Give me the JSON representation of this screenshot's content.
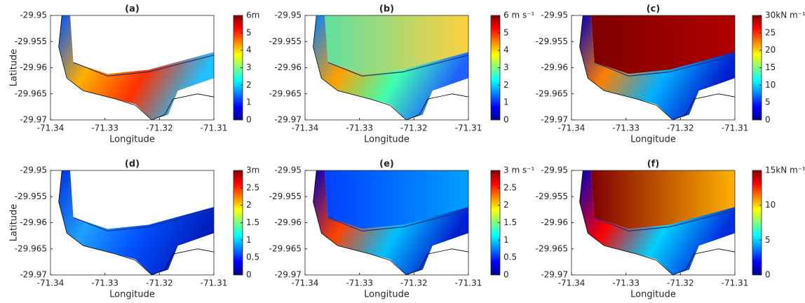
{
  "chart_data": [
    {
      "type": "map",
      "title": "(a)",
      "xlabel": "Longitude",
      "ylabel": "Latitude",
      "colormap": "jet",
      "xlim": [
        -71.34,
        -71.31
      ],
      "xticks": [
        -71.34,
        -71.33,
        -71.32,
        -71.31
      ],
      "ylim": [
        -29.97,
        -29.95
      ],
      "yticks": [
        -29.97,
        -29.965,
        -29.96,
        -29.955,
        -29.95
      ],
      "clim": [
        0,
        6
      ],
      "cticks": [
        0,
        1,
        2,
        3,
        4,
        5,
        {
          "value": 6,
          "label": "6m"
        }
      ]
    },
    {
      "type": "map",
      "title": "(b)",
      "xlabel": "Longitude",
      "colormap": "jet",
      "xlim": [
        -71.34,
        -71.31
      ],
      "xticks": [
        -71.34,
        -71.33,
        -71.32,
        -71.31
      ],
      "ylim": [
        -29.97,
        -29.95
      ],
      "yticks": [
        -29.97,
        -29.965,
        -29.96,
        -29.955,
        -29.95
      ],
      "clim": [
        0,
        6
      ],
      "cticks": [
        0,
        1,
        2,
        3,
        4,
        5,
        {
          "value": 6,
          "label": "6 m s⁻¹"
        }
      ]
    },
    {
      "type": "map",
      "title": "(c)",
      "xlabel": "Longitude",
      "colormap": "jet",
      "xlim": [
        -71.34,
        -71.31
      ],
      "xticks": [
        -71.34,
        -71.33,
        -71.32,
        -71.31
      ],
      "ylim": [
        -29.97,
        -29.95
      ],
      "yticks": [
        -29.97,
        -29.965,
        -29.96,
        -29.955,
        -29.95
      ],
      "clim": [
        0,
        30
      ],
      "cticks": [
        0,
        5,
        10,
        15,
        20,
        25,
        {
          "value": 30,
          "label": "30kN m⁻¹"
        }
      ]
    },
    {
      "type": "map",
      "title": "(d)",
      "xlabel": "Longitude",
      "ylabel": "Latitude",
      "colormap": "jet",
      "xlim": [
        -71.34,
        -71.31
      ],
      "xticks": [
        -71.34,
        -71.33,
        -71.32,
        -71.31
      ],
      "ylim": [
        -29.97,
        -29.95
      ],
      "yticks": [
        -29.97,
        -29.965,
        -29.96,
        -29.955,
        -29.95
      ],
      "clim": [
        0,
        3
      ],
      "cticks": [
        0,
        0.5,
        1,
        1.5,
        2,
        2.5,
        {
          "value": 3,
          "label": "3m"
        }
      ]
    },
    {
      "type": "map",
      "title": "(e)",
      "xlabel": "Longitude",
      "colormap": "jet",
      "xlim": [
        -71.34,
        -71.31
      ],
      "xticks": [
        -71.34,
        -71.33,
        -71.32,
        -71.31
      ],
      "ylim": [
        -29.97,
        -29.95
      ],
      "yticks": [
        -29.97,
        -29.965,
        -29.96,
        -29.955,
        -29.95
      ],
      "clim": [
        0,
        3
      ],
      "cticks": [
        0,
        0.5,
        1,
        1.5,
        2,
        2.5,
        {
          "value": 3,
          "label": "3 m s⁻¹"
        }
      ]
    },
    {
      "type": "map",
      "title": "(f)",
      "xlabel": "Longitude",
      "colormap": "jet",
      "xlim": [
        -71.34,
        -71.31
      ],
      "xticks": [
        -71.34,
        -71.33,
        -71.32,
        -71.31
      ],
      "ylim": [
        -29.97,
        -29.95
      ],
      "yticks": [
        -29.97,
        -29.965,
        -29.96,
        -29.955,
        -29.95
      ],
      "clim": [
        0,
        15
      ],
      "cticks": [
        0,
        5,
        10,
        {
          "value": 15,
          "label": "15kN m⁻¹"
        }
      ]
    }
  ]
}
